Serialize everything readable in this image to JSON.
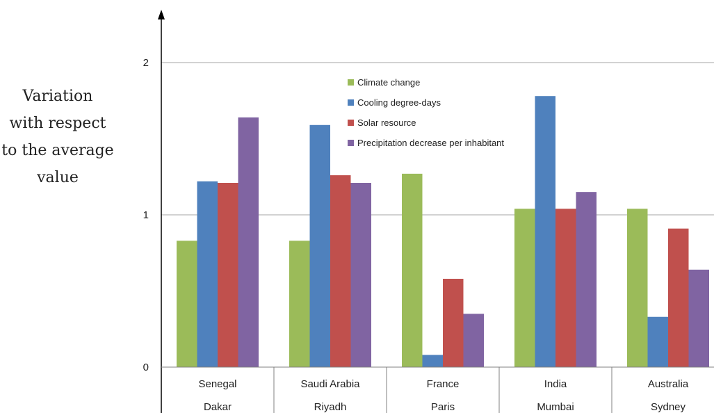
{
  "chart_data": {
    "type": "bar",
    "title": "",
    "ylabel_lines": [
      "Variation",
      "with respect",
      "to the average",
      "value"
    ],
    "xlabel": "",
    "categories": [
      {
        "country": "Senegal",
        "city": "Dakar"
      },
      {
        "country": "Saudi Arabia",
        "city": "Riyadh"
      },
      {
        "country": "France",
        "city": "Paris"
      },
      {
        "country": "India",
        "city": "Mumbai"
      },
      {
        "country": "Australia",
        "city": "Sydney"
      }
    ],
    "series": [
      {
        "name": "Climate change",
        "color": "#9BBB59",
        "values": [
          0.83,
          0.83,
          1.27,
          1.04,
          1.04
        ]
      },
      {
        "name": "Cooling degree-days",
        "color": "#4F81BD",
        "values": [
          1.22,
          1.59,
          0.08,
          1.78,
          0.33
        ]
      },
      {
        "name": "Solar resource",
        "color": "#C0504D",
        "values": [
          1.21,
          1.26,
          0.58,
          1.04,
          0.91
        ]
      },
      {
        "name": "Precipitation decrease per inhabitant",
        "color": "#8064A2",
        "values": [
          1.64,
          1.21,
          0.35,
          1.15,
          0.64
        ]
      }
    ],
    "yticks": [
      {
        "value": 0,
        "label": "0"
      },
      {
        "value": 1,
        "label": "1"
      },
      {
        "value": 2,
        "label": "2"
      }
    ],
    "ylim": [
      0,
      2
    ],
    "grid": true,
    "legend": "top-center"
  }
}
